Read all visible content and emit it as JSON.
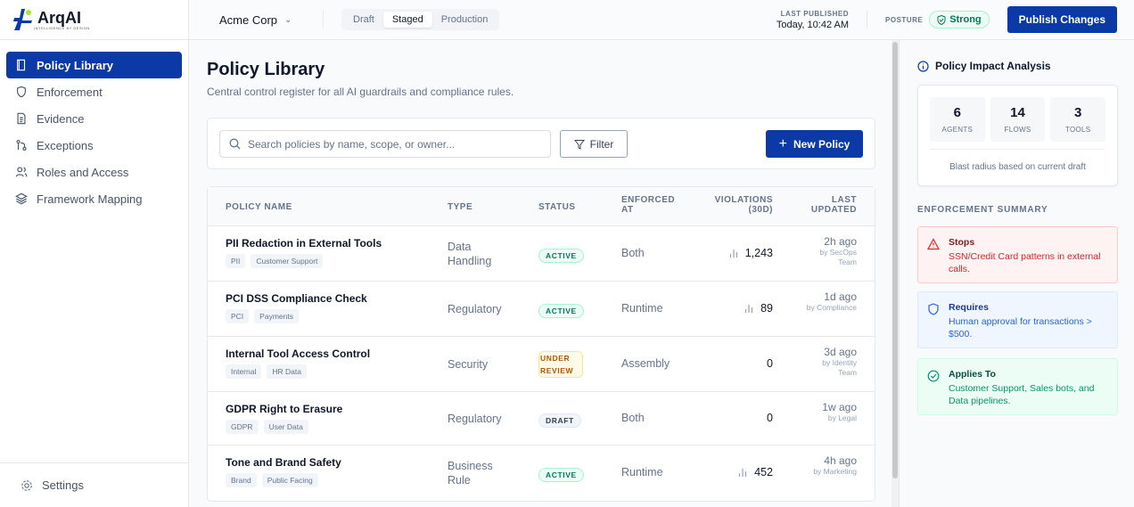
{
  "brand": {
    "name": "ArqAI",
    "tagline": "INTELLIGENCE BY DESIGN"
  },
  "sidebar": {
    "items": [
      {
        "label": "Policy Library",
        "icon": "book-icon",
        "active": true
      },
      {
        "label": "Enforcement",
        "icon": "shield-icon"
      },
      {
        "label": "Evidence",
        "icon": "document-icon"
      },
      {
        "label": "Exceptions",
        "icon": "git-branch-icon"
      },
      {
        "label": "Roles and Access",
        "icon": "users-icon"
      },
      {
        "label": "Framework Mapping",
        "icon": "layers-icon"
      }
    ],
    "settings": "Settings"
  },
  "header": {
    "org": "Acme Corp",
    "env_tabs": [
      "Draft",
      "Staged",
      "Production"
    ],
    "env_selected": "Staged",
    "last_published_label": "LAST PUBLISHED",
    "last_published": "Today, 10:42 AM",
    "posture_label": "POSTURE",
    "posture": "Strong",
    "publish": "Publish Changes"
  },
  "main": {
    "title": "Policy Library",
    "subtitle": "Central control register for all AI guardrails and compliance rules.",
    "search_placeholder": "Search policies by name, scope, or owner...",
    "filter": "Filter",
    "new_policy": "New Policy",
    "columns": [
      "POLICY NAME",
      "TYPE",
      "STATUS",
      "ENFORCED AT",
      "VIOLATIONS (30D)",
      "LAST UPDATED"
    ],
    "rows": [
      {
        "name": "PII Redaction in External Tools",
        "tags": [
          "PII",
          "Customer Support"
        ],
        "type": "Data Handling",
        "status": "ACTIVE",
        "enforced": "Both",
        "violations": "1,243",
        "chart": true,
        "updated": "2h ago",
        "by": "by SecOps Team"
      },
      {
        "name": "PCI DSS Compliance Check",
        "tags": [
          "PCI",
          "Payments"
        ],
        "type": "Regulatory",
        "status": "ACTIVE",
        "enforced": "Runtime",
        "violations": "89",
        "chart": true,
        "updated": "1d ago",
        "by": "by Compliance"
      },
      {
        "name": "Internal Tool Access Control",
        "tags": [
          "Internal",
          "HR Data"
        ],
        "type": "Security",
        "status": "UNDER REVIEW",
        "enforced": "Assembly",
        "violations": "0",
        "chart": false,
        "updated": "3d ago",
        "by": "by Identity Team"
      },
      {
        "name": "GDPR Right to Erasure",
        "tags": [
          "GDPR",
          "User Data"
        ],
        "type": "Regulatory",
        "status": "DRAFT",
        "enforced": "Both",
        "violations": "0",
        "chart": false,
        "updated": "1w ago",
        "by": "by Legal"
      },
      {
        "name": "Tone and Brand Safety",
        "tags": [
          "Brand",
          "Public Facing"
        ],
        "type": "Business Rule",
        "status": "ACTIVE",
        "enforced": "Runtime",
        "violations": "452",
        "chart": true,
        "updated": "4h ago",
        "by": "by Marketing"
      }
    ]
  },
  "panel": {
    "title": "Policy Impact Analysis",
    "stats": [
      {
        "value": "6",
        "label": "AGENTS"
      },
      {
        "value": "14",
        "label": "FLOWS"
      },
      {
        "value": "3",
        "label": "TOOLS"
      }
    ],
    "blast": "Blast radius based on current draft",
    "summary_title": "ENFORCEMENT SUMMARY",
    "cards": [
      {
        "title": "Stops",
        "text": "SSN/Credit Card patterns in external calls.",
        "color": "#dc2626"
      },
      {
        "title": "Requires",
        "text": "Human approval for transactions > $500.",
        "color": "#2563eb"
      },
      {
        "title": "Applies To",
        "text": "Customer Support, Sales bots, and Data pipelines.",
        "color": "#059669"
      }
    ]
  },
  "colors": {
    "primary": "#0b3aa6",
    "success": "#047857",
    "warning": "#b45309"
  }
}
